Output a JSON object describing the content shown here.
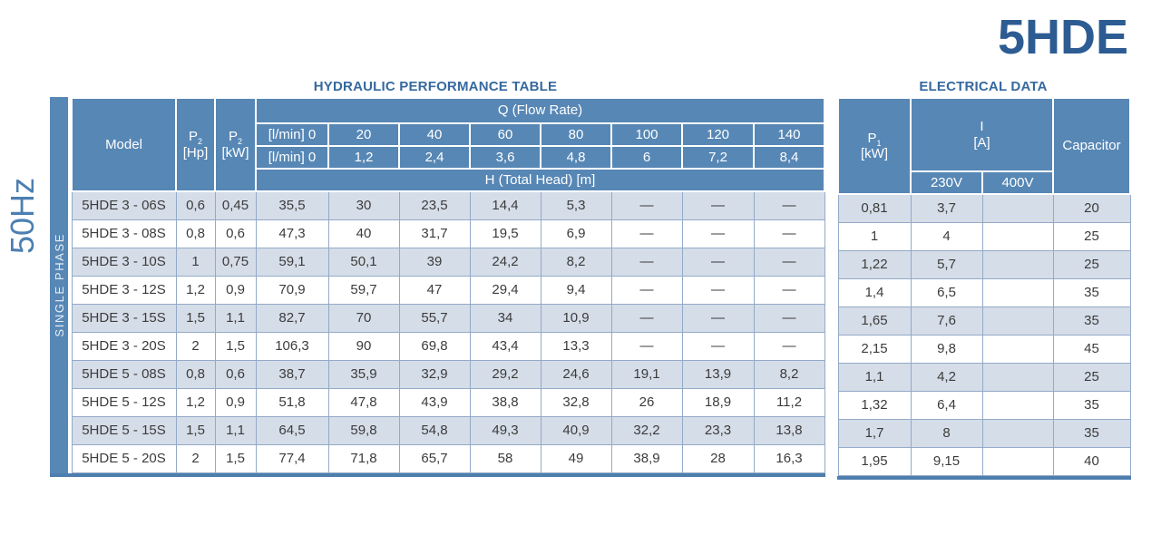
{
  "page": {
    "product_title": "5HDE",
    "frequency_label": "50Hz",
    "phase_label": "SINGLE PHASE"
  },
  "colors": {
    "header_blue": "#5787b5",
    "row_light": "#d5dde8",
    "title_blue": "#36699f",
    "product_title_blue": "#2d5c93",
    "frequency_blue": "#4c7fb2",
    "body_text": "#3c3c3c"
  },
  "hydraulic": {
    "title": "HYDRAULIC PERFORMANCE TABLE",
    "header": {
      "model": "Model",
      "p2_hp": {
        "sym": "P",
        "sub": "2",
        "unit": "[Hp]"
      },
      "p2_kw": {
        "sym": "P",
        "sub": "2",
        "unit": "[kW]"
      },
      "q_title": "Q (Flow Rate)",
      "flow_row1": [
        "[l/min] 0",
        "20",
        "40",
        "60",
        "80",
        "100",
        "120",
        "140"
      ],
      "flow_row2": [
        "[l/min] 0",
        "1,2",
        "2,4",
        "3,6",
        "4,8",
        "6",
        "7,2",
        "8,4"
      ],
      "head_title": "H (Total Head) [m]"
    },
    "rows": [
      {
        "model": "5HDE 3 - 06S",
        "p2_hp": "0,6",
        "p2_kw": "0,45",
        "head": [
          "35,5",
          "30",
          "23,5",
          "14,4",
          "5,3",
          "—",
          "—",
          "—"
        ]
      },
      {
        "model": "5HDE 3 - 08S",
        "p2_hp": "0,8",
        "p2_kw": "0,6",
        "head": [
          "47,3",
          "40",
          "31,7",
          "19,5",
          "6,9",
          "—",
          "—",
          "—"
        ]
      },
      {
        "model": "5HDE 3 - 10S",
        "p2_hp": "1",
        "p2_kw": "0,75",
        "head": [
          "59,1",
          "50,1",
          "39",
          "24,2",
          "8,2",
          "—",
          "—",
          "—"
        ]
      },
      {
        "model": "5HDE 3 - 12S",
        "p2_hp": "1,2",
        "p2_kw": "0,9",
        "head": [
          "70,9",
          "59,7",
          "47",
          "29,4",
          "9,4",
          "—",
          "—",
          "—"
        ]
      },
      {
        "model": "5HDE 3 - 15S",
        "p2_hp": "1,5",
        "p2_kw": "1,1",
        "head": [
          "82,7",
          "70",
          "55,7",
          "34",
          "10,9",
          "—",
          "—",
          "—"
        ]
      },
      {
        "model": "5HDE 3 - 20S",
        "p2_hp": "2",
        "p2_kw": "1,5",
        "head": [
          "106,3",
          "90",
          "69,8",
          "43,4",
          "13,3",
          "—",
          "—",
          "—"
        ]
      },
      {
        "model": "5HDE 5 - 08S",
        "p2_hp": "0,8",
        "p2_kw": "0,6",
        "head": [
          "38,7",
          "35,9",
          "32,9",
          "29,2",
          "24,6",
          "19,1",
          "13,9",
          "8,2"
        ]
      },
      {
        "model": "5HDE 5 - 12S",
        "p2_hp": "1,2",
        "p2_kw": "0,9",
        "head": [
          "51,8",
          "47,8",
          "43,9",
          "38,8",
          "32,8",
          "26",
          "18,9",
          "11,2"
        ]
      },
      {
        "model": "5HDE 5 - 15S",
        "p2_hp": "1,5",
        "p2_kw": "1,1",
        "head": [
          "64,5",
          "59,8",
          "54,8",
          "49,3",
          "40,9",
          "32,2",
          "23,3",
          "13,8"
        ]
      },
      {
        "model": "5HDE 5 - 20S",
        "p2_hp": "2",
        "p2_kw": "1,5",
        "head": [
          "77,4",
          "71,8",
          "65,7",
          "58",
          "49",
          "38,9",
          "28",
          "16,3"
        ]
      }
    ]
  },
  "electrical": {
    "title": "ELECTRICAL DATA",
    "header": {
      "p1": {
        "sym": "P",
        "sub": "1",
        "unit": "[kW]"
      },
      "current": {
        "sym": "I",
        "unit": "[A]"
      },
      "v230": "230V",
      "v400": "400V",
      "capacitor": "Capacitor"
    },
    "rows": [
      {
        "p1": "0,81",
        "i230": "3,7",
        "i400": "",
        "cap": "20"
      },
      {
        "p1": "1",
        "i230": "4",
        "i400": "",
        "cap": "25"
      },
      {
        "p1": "1,22",
        "i230": "5,7",
        "i400": "",
        "cap": "25"
      },
      {
        "p1": "1,4",
        "i230": "6,5",
        "i400": "",
        "cap": "35"
      },
      {
        "p1": "1,65",
        "i230": "7,6",
        "i400": "",
        "cap": "35"
      },
      {
        "p1": "2,15",
        "i230": "9,8",
        "i400": "",
        "cap": "45"
      },
      {
        "p1": "1,1",
        "i230": "4,2",
        "i400": "",
        "cap": "25"
      },
      {
        "p1": "1,32",
        "i230": "6,4",
        "i400": "",
        "cap": "35"
      },
      {
        "p1": "1,7",
        "i230": "8",
        "i400": "",
        "cap": "35"
      },
      {
        "p1": "1,95",
        "i230": "9,15",
        "i400": "",
        "cap": "40"
      }
    ]
  }
}
